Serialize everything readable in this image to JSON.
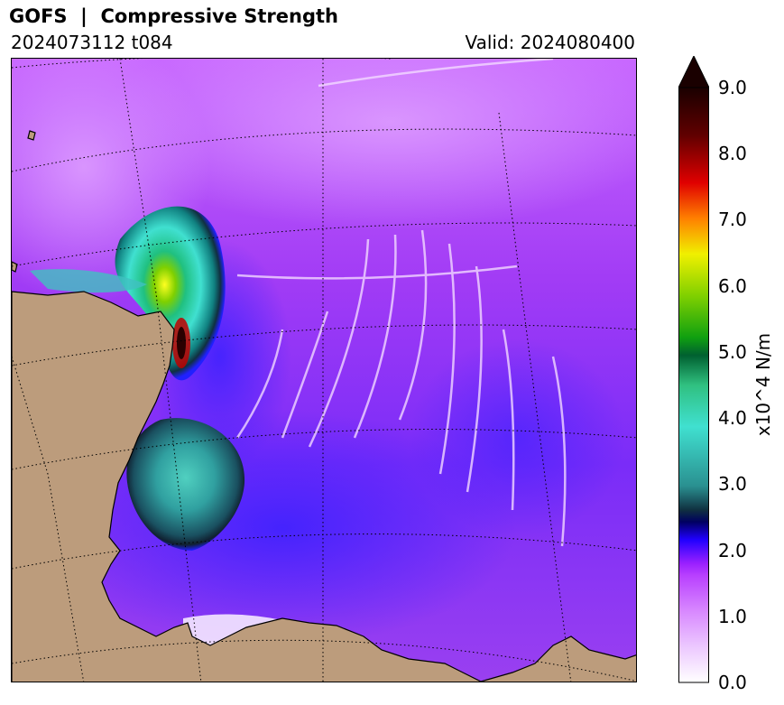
{
  "header": {
    "title": "GOFS  |  Compressive Strength",
    "run": "2024073112 t084",
    "valid": "Valid: 2024080400"
  },
  "colorbar": {
    "label": "x10^4 N/m",
    "ticks": [
      "0.0",
      "1.0",
      "2.0",
      "3.0",
      "4.0",
      "5.0",
      "6.0",
      "7.0",
      "8.0",
      "9.0"
    ],
    "range": [
      0,
      9
    ],
    "extend": "max"
  },
  "colors": {
    "land": "#bc9c7c",
    "background_field": "#a020f0",
    "ice_low": "#d27aff",
    "ice_mid": "#2020ff",
    "ice_high": "#40e0d0",
    "ice_peak": "#ffff00",
    "over_max": "#2a0000"
  }
}
